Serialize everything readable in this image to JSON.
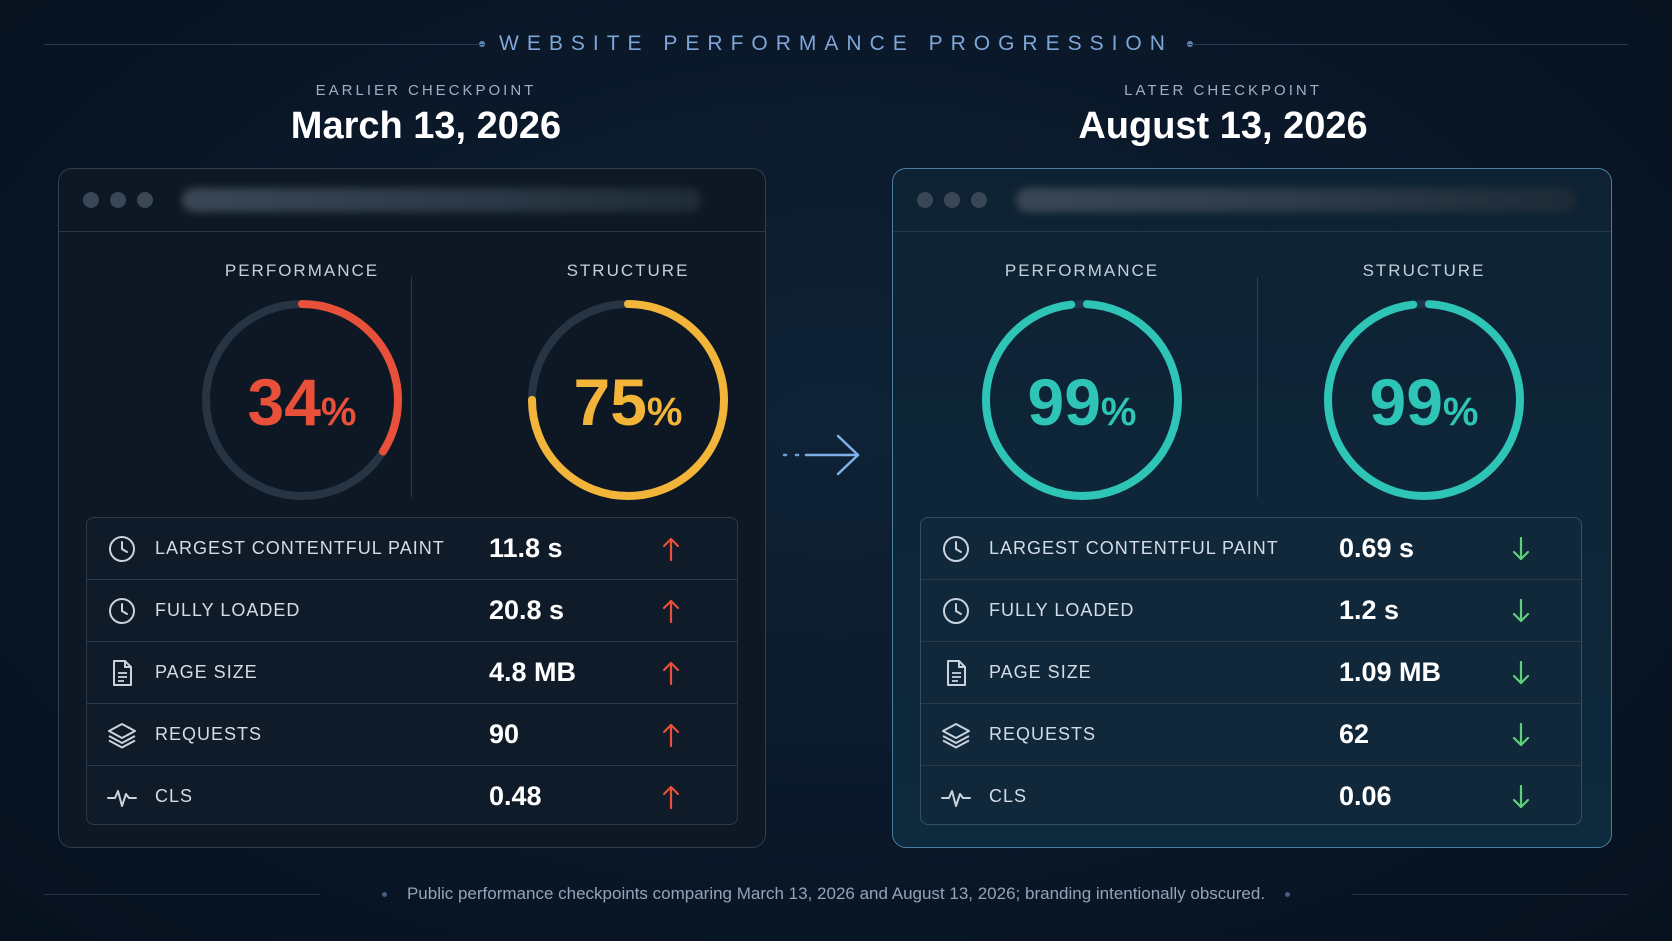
{
  "header": {
    "title": "WEBSITE PERFORMANCE PROGRESSION"
  },
  "colors": {
    "poor": "#e8503a",
    "average": "#f2b53a",
    "good": "#2ec4b6",
    "up_arrow": "#e8503a",
    "down_arrow": "#5fd07a"
  },
  "earlier": {
    "label": "EARLIER CHECKPOINT",
    "date": "March 13, 2026",
    "performance": {
      "label": "PERFORMANCE",
      "value": "34",
      "unit": "%",
      "score": 34,
      "color": "#e8503a"
    },
    "structure": {
      "label": "STRUCTURE",
      "value": "75",
      "unit": "%",
      "score": 75,
      "color": "#f2b53a"
    },
    "metrics": [
      {
        "icon": "clock-icon",
        "name": "LARGEST CONTENTFUL PAINT",
        "value": "11.8 s",
        "trend": "up"
      },
      {
        "icon": "clock-icon",
        "name": "FULLY LOADED",
        "value": "20.8 s",
        "trend": "up"
      },
      {
        "icon": "document-icon",
        "name": "PAGE SIZE",
        "value": "4.8 MB",
        "trend": "up"
      },
      {
        "icon": "layers-icon",
        "name": "REQUESTS",
        "value": "90",
        "trend": "up"
      },
      {
        "icon": "pulse-icon",
        "name": "CLS",
        "value": "0.48",
        "trend": "up"
      }
    ]
  },
  "later": {
    "label": "LATER CHECKPOINT",
    "date": "August 13, 2026",
    "performance": {
      "label": "PERFORMANCE",
      "value": "99",
      "unit": "%",
      "score": 99,
      "color": "#2ec4b6"
    },
    "structure": {
      "label": "STRUCTURE",
      "value": "99",
      "unit": "%",
      "score": 99,
      "color": "#2ec4b6"
    },
    "metrics": [
      {
        "icon": "clock-icon",
        "name": "LARGEST CONTENTFUL PAINT",
        "value": "0.69 s",
        "trend": "down"
      },
      {
        "icon": "clock-icon",
        "name": "FULLY LOADED",
        "value": "1.2 s",
        "trend": "down"
      },
      {
        "icon": "document-icon",
        "name": "PAGE SIZE",
        "value": "1.09 MB",
        "trend": "down"
      },
      {
        "icon": "layers-icon",
        "name": "REQUESTS",
        "value": "62",
        "trend": "down"
      },
      {
        "icon": "pulse-icon",
        "name": "CLS",
        "value": "0.06",
        "trend": "down"
      }
    ]
  },
  "footer": {
    "caption": "Public performance checkpoints comparing March 13, 2026 and August 13, 2026; branding intentionally obscured."
  }
}
